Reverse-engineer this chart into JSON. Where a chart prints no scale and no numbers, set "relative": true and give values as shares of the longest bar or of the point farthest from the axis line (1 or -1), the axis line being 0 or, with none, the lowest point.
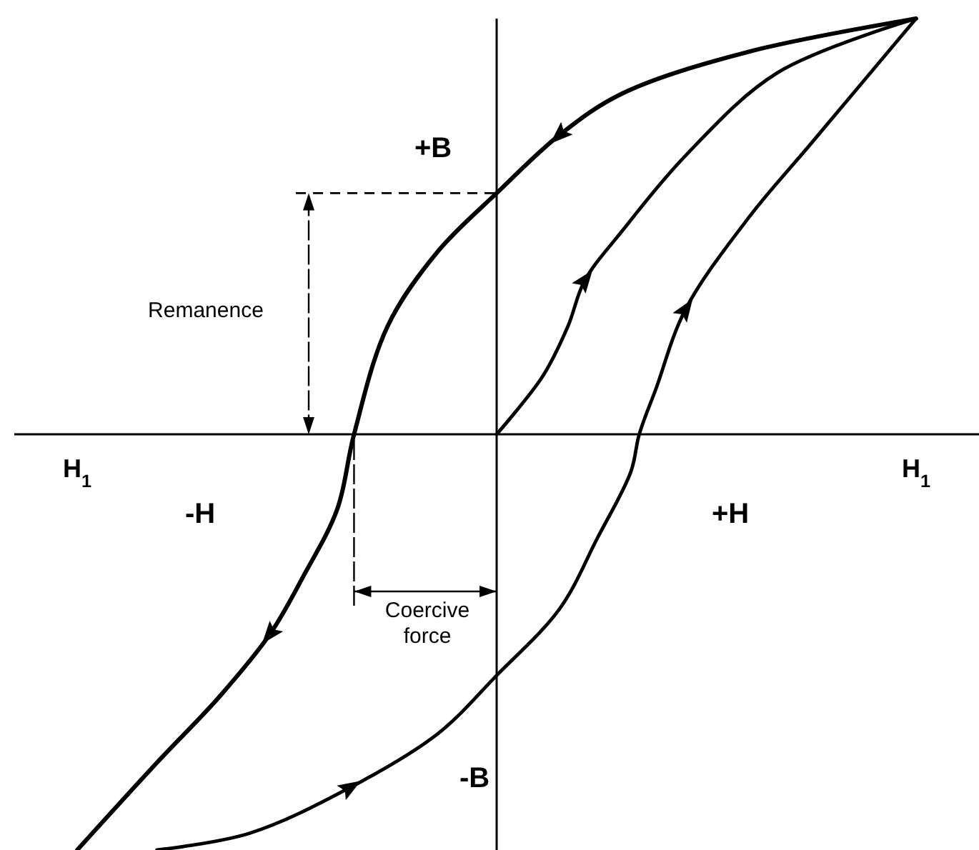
{
  "chart_data": {
    "type": "line",
    "relative": true,
    "marker": "none",
    "grid": false,
    "tick_labels": "x",
    "xlim": [
      -1.15,
      1.15
    ],
    "xticks": [
      {
        "value": -1,
        "label": "H$_{1}$"
      },
      {
        "value": 1,
        "label": "H$_{1}$"
      }
    ],
    "ref_lines": [
      {
        "axis": "x",
        "value": 0,
        "color": "#000000"
      }
    ],
    "series": [
      {
        "color": "#000000",
        "x": [
          1,
          0.6,
          0.3,
          0.15,
          0,
          -0.14,
          -0.26,
          -0.34,
          -0.38,
          -0.46,
          -0.54,
          -0.66,
          -0.81,
          -1
        ],
        "values": [
          1,
          0.92,
          0.82,
          0.72,
          0.58,
          0.44,
          0.26,
          0,
          -0.18,
          -0.34,
          -0.48,
          -0.63,
          -0.79,
          -1
        ]
      },
      {
        "color": "#000000",
        "x": [
          -0.81,
          -0.59,
          -0.35,
          -0.14,
          0,
          0.15,
          0.24,
          0.32,
          0.34,
          0.38,
          0.45,
          0.6,
          0.75,
          1
        ],
        "values": [
          -1,
          -0.96,
          -0.85,
          -0.72,
          -0.58,
          -0.42,
          -0.25,
          -0.09,
          0,
          0.11,
          0.3,
          0.52,
          0.7,
          1
        ]
      },
      {
        "color": "#000000",
        "x": [
          0,
          0.11,
          0.17,
          0.21,
          0.3,
          0.45,
          0.67,
          1
        ],
        "values": [
          0,
          0.14,
          0.26,
          0.37,
          0.49,
          0.67,
          0.87,
          1
        ]
      }
    ],
    "annotations": [
      "+B",
      "-B",
      "+H",
      "-H",
      "Remanence",
      "Coercive force"
    ]
  }
}
